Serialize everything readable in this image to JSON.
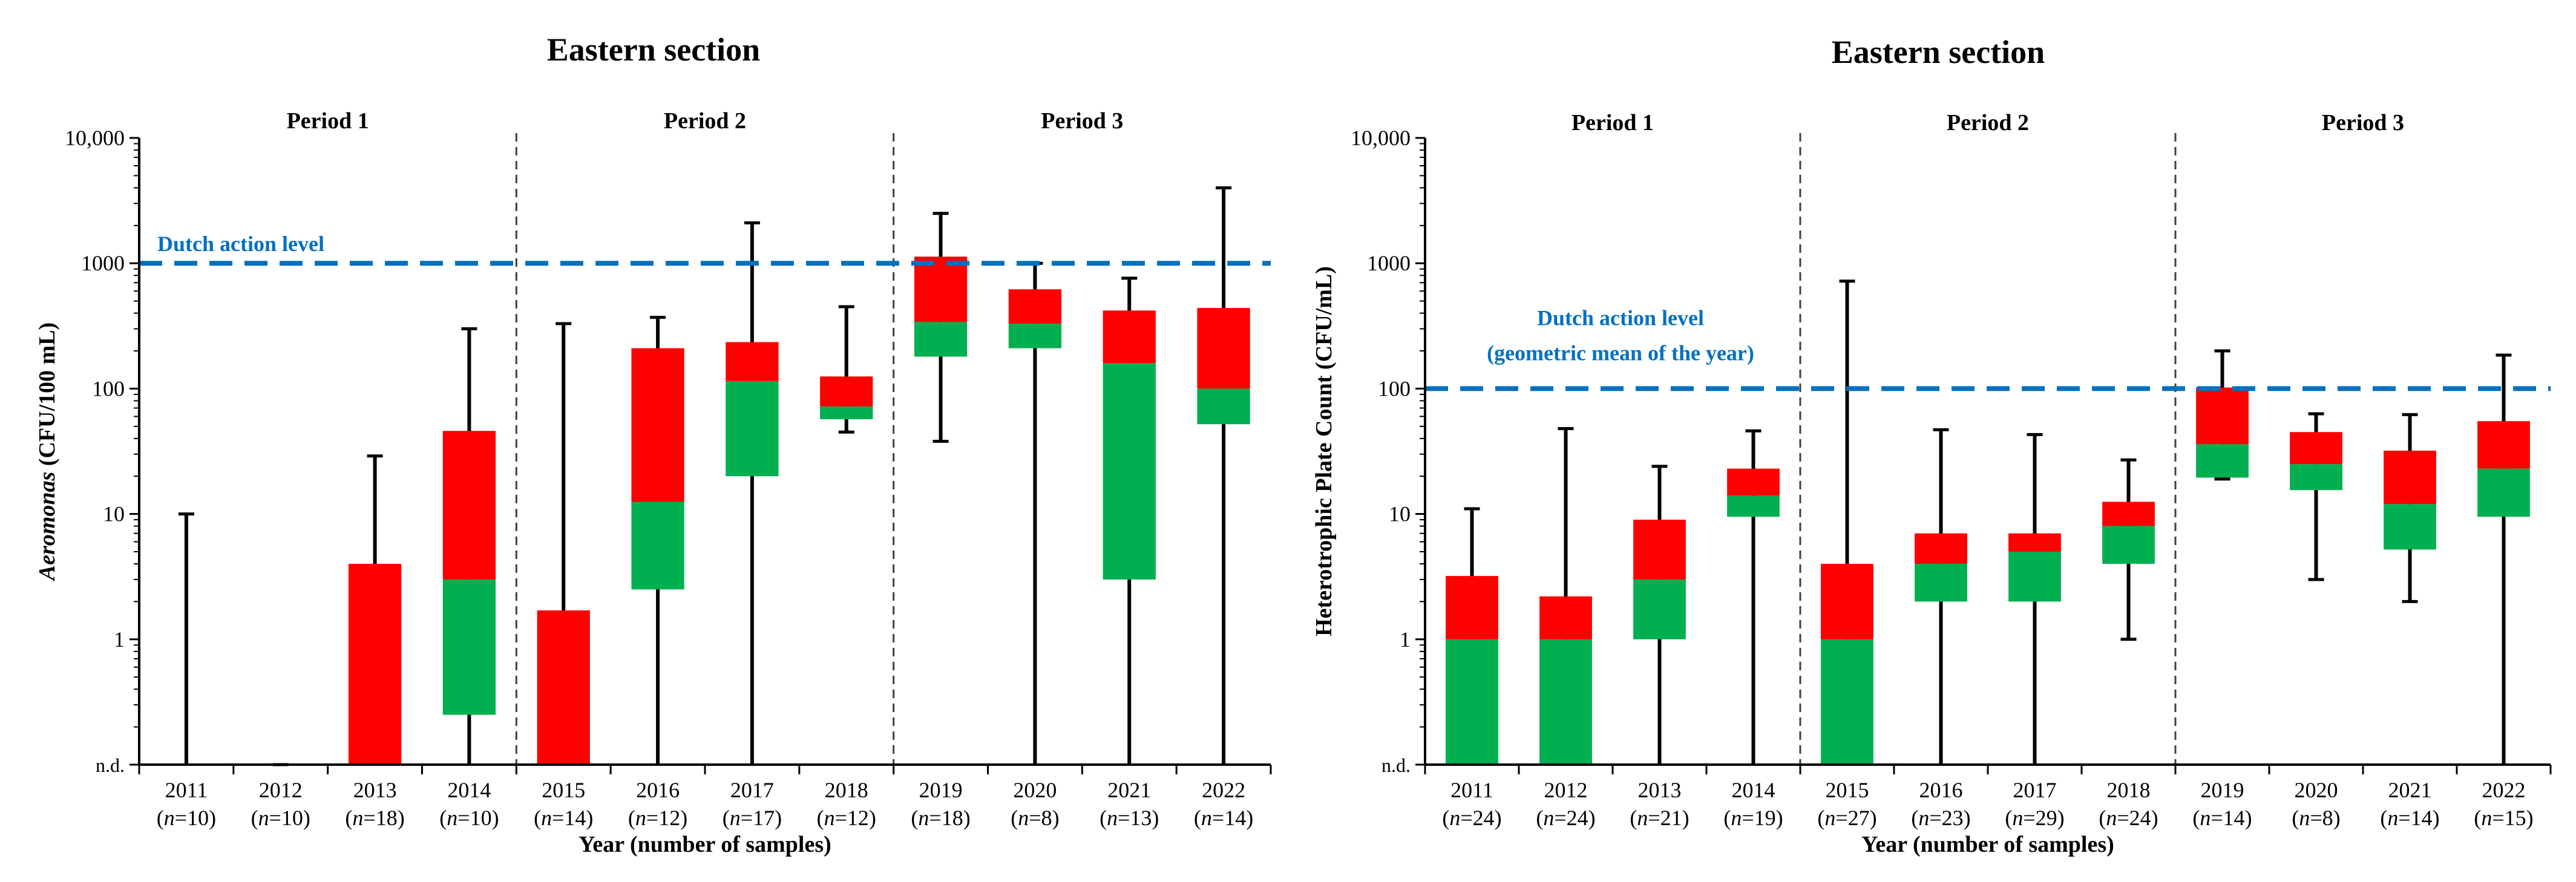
{
  "chart_data": [
    {
      "type": "box",
      "title": "Eastern section",
      "ylabel_parts": [
        {
          "text": "Aeromonas",
          "italic": true
        },
        {
          "text": " (CFU/100 mL)",
          "italic": false
        }
      ],
      "xlabel": "Year (number of samples)",
      "yscale": "log",
      "ylim": [
        0.1,
        10000
      ],
      "yticks": [
        {
          "value": 0.1,
          "label": "n.d."
        },
        {
          "value": 1,
          "label": "1"
        },
        {
          "value": 10,
          "label": "10"
        },
        {
          "value": 100,
          "label": "100"
        },
        {
          "value": 1000,
          "label": "1000"
        },
        {
          "value": 10000,
          "label": "10,000"
        }
      ],
      "periods": [
        "Period 1",
        "Period 2",
        "Period 3"
      ],
      "reference_line": {
        "value": 1000,
        "label_lines": [
          "Dutch action level"
        ],
        "color": "#0070C0"
      },
      "box_colors": {
        "upper": "#FF0000",
        "lower": "#00B050"
      },
      "categories": [
        {
          "year": "2011",
          "n": "10",
          "min": 0.1,
          "q1": 0.1,
          "median": 0.1,
          "q3": 0.1,
          "max": 10
        },
        {
          "year": "2012",
          "n": "10",
          "min": 0.1,
          "q1": 0.1,
          "median": 0.1,
          "q3": 0.1,
          "max": 0.1
        },
        {
          "year": "2013",
          "n": "18",
          "min": 0.1,
          "q1": 0.1,
          "median": 0.1,
          "q3": 4,
          "max": 29
        },
        {
          "year": "2014",
          "n": "10",
          "min": 0.1,
          "q1": 0.25,
          "median": 3,
          "q3": 46,
          "max": 300
        },
        {
          "year": "2015",
          "n": "14",
          "min": 0.1,
          "q1": 0.1,
          "median": 0.1,
          "q3": 1.7,
          "max": 330
        },
        {
          "year": "2016",
          "n": "12",
          "min": 0.1,
          "q1": 2.5,
          "median": 12.5,
          "q3": 210,
          "max": 370
        },
        {
          "year": "2017",
          "n": "17",
          "min": 0.1,
          "q1": 20,
          "median": 115,
          "q3": 235,
          "max": 2100
        },
        {
          "year": "2018",
          "n": "12",
          "min": 45,
          "q1": 57,
          "median": 72,
          "q3": 125,
          "max": 450
        },
        {
          "year": "2019",
          "n": "18",
          "min": 38,
          "q1": 180,
          "median": 340,
          "q3": 1130,
          "max": 2500
        },
        {
          "year": "2020",
          "n": "8",
          "min": 0.1,
          "q1": 210,
          "median": 330,
          "q3": 620,
          "max": 1000
        },
        {
          "year": "2021",
          "n": "13",
          "min": 0.1,
          "q1": 3,
          "median": 160,
          "q3": 420,
          "max": 760
        },
        {
          "year": "2022",
          "n": "14",
          "min": 0.1,
          "q1": 52,
          "median": 100,
          "q3": 440,
          "max": 4000
        }
      ]
    },
    {
      "type": "box",
      "title": "Eastern section",
      "ylabel_parts": [
        {
          "text": "Heterotrophic Plate Count (CFU/mL)",
          "italic": false
        }
      ],
      "xlabel": "Year (number of samples)",
      "yscale": "log",
      "ylim": [
        0.1,
        10000
      ],
      "yticks": [
        {
          "value": 0.1,
          "label": "n.d."
        },
        {
          "value": 1,
          "label": "1"
        },
        {
          "value": 10,
          "label": "10"
        },
        {
          "value": 100,
          "label": "100"
        },
        {
          "value": 1000,
          "label": "1000"
        },
        {
          "value": 10000,
          "label": "10,000"
        }
      ],
      "periods": [
        "Period 1",
        "Period 2",
        "Period 3"
      ],
      "reference_line": {
        "value": 100,
        "label_lines": [
          "Dutch action level",
          "(geometric mean of the year)"
        ],
        "color": "#0070C0"
      },
      "box_colors": {
        "upper": "#FF0000",
        "lower": "#00B050"
      },
      "categories": [
        {
          "year": "2011",
          "n": "24",
          "min": 0.1,
          "q1": 0.1,
          "median": 1,
          "q3": 3.2,
          "max": 11
        },
        {
          "year": "2012",
          "n": "24",
          "min": 0.1,
          "q1": 0.1,
          "median": 1,
          "q3": 2.2,
          "max": 48
        },
        {
          "year": "2013",
          "n": "21",
          "min": 0.1,
          "q1": 1,
          "median": 3,
          "q3": 9,
          "max": 24
        },
        {
          "year": "2014",
          "n": "19",
          "min": 0.1,
          "q1": 9.5,
          "median": 14,
          "q3": 23,
          "max": 46
        },
        {
          "year": "2015",
          "n": "27",
          "min": 0.1,
          "q1": 0.1,
          "median": 1,
          "q3": 4,
          "max": 720
        },
        {
          "year": "2016",
          "n": "23",
          "min": 0.1,
          "q1": 2,
          "median": 4,
          "q3": 7,
          "max": 47
        },
        {
          "year": "2017",
          "n": "29",
          "min": 0.1,
          "q1": 2,
          "median": 5,
          "q3": 7,
          "max": 43
        },
        {
          "year": "2018",
          "n": "24",
          "min": 1,
          "q1": 4,
          "median": 8,
          "q3": 12.5,
          "max": 27
        },
        {
          "year": "2019",
          "n": "14",
          "min": 19,
          "q1": 19.5,
          "median": 36,
          "q3": 102,
          "max": 200
        },
        {
          "year": "2020",
          "n": "8",
          "min": 3,
          "q1": 15.5,
          "median": 25,
          "q3": 45,
          "max": 63
        },
        {
          "year": "2021",
          "n": "14",
          "min": 2,
          "q1": 5.2,
          "median": 12,
          "q3": 32,
          "max": 62
        },
        {
          "year": "2022",
          "n": "15",
          "min": 0.1,
          "q1": 9.5,
          "median": 23,
          "q3": 55,
          "max": 185
        }
      ]
    }
  ]
}
